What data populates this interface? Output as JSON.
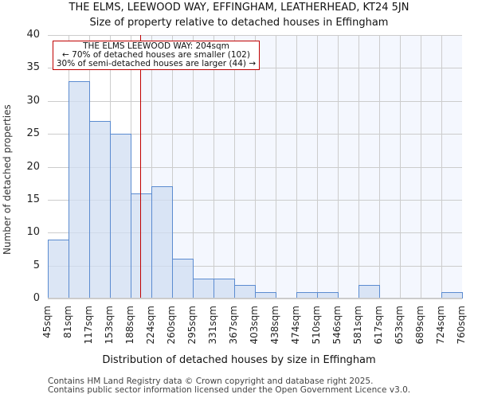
{
  "chart_data": {
    "type": "bar",
    "title": "THE ELMS, LEEWOOD WAY, EFFINGHAM, LEATHERHEAD, KT24 5JN",
    "subtitle": "Size of property relative to detached houses in Effingham",
    "xlabel": "Distribution of detached houses by size in Effingham",
    "ylabel": "Number of detached properties",
    "categories": [
      "45sqm",
      "81sqm",
      "117sqm",
      "153sqm",
      "188sqm",
      "224sqm",
      "260sqm",
      "295sqm",
      "331sqm",
      "367sqm",
      "403sqm",
      "438sqm",
      "474sqm",
      "510sqm",
      "546sqm",
      "581sqm",
      "617sqm",
      "653sqm",
      "689sqm",
      "724sqm"
    ],
    "bin_edges_labels": [
      "45sqm",
      "81sqm",
      "117sqm",
      "153sqm",
      "188sqm",
      "224sqm",
      "260sqm",
      "295sqm",
      "331sqm",
      "367sqm",
      "403sqm",
      "438sqm",
      "474sqm",
      "510sqm",
      "546sqm",
      "581sqm",
      "617sqm",
      "653sqm",
      "689sqm",
      "724sqm",
      "760sqm"
    ],
    "values": [
      9,
      33,
      27,
      25,
      16,
      17,
      6,
      3,
      3,
      2,
      1,
      0,
      1,
      1,
      0,
      2,
      0,
      0,
      0,
      1
    ],
    "ylim": [
      0,
      40
    ],
    "yticks": [
      0,
      5,
      10,
      15,
      20,
      25,
      30,
      35,
      40
    ],
    "grid": true,
    "marker": {
      "value_sqm": 204,
      "color": "#c00000"
    },
    "annotation": {
      "line1": "THE ELMS LEEWOOD WAY: 204sqm",
      "line2": "← 70% of detached houses are smaller (102)",
      "line3": "30% of semi-detached houses are larger (44) →"
    },
    "colors": {
      "bar_fill": "#d6e2f3",
      "bar_edge": "#5b8bd0",
      "highlight_bg": "#f4f7fe",
      "grid": "#cccccc"
    }
  },
  "footer": {
    "line1": "Contains HM Land Registry data © Crown copyright and database right 2025.",
    "line2": "Contains public sector information licensed under the Open Government Licence v3.0."
  }
}
